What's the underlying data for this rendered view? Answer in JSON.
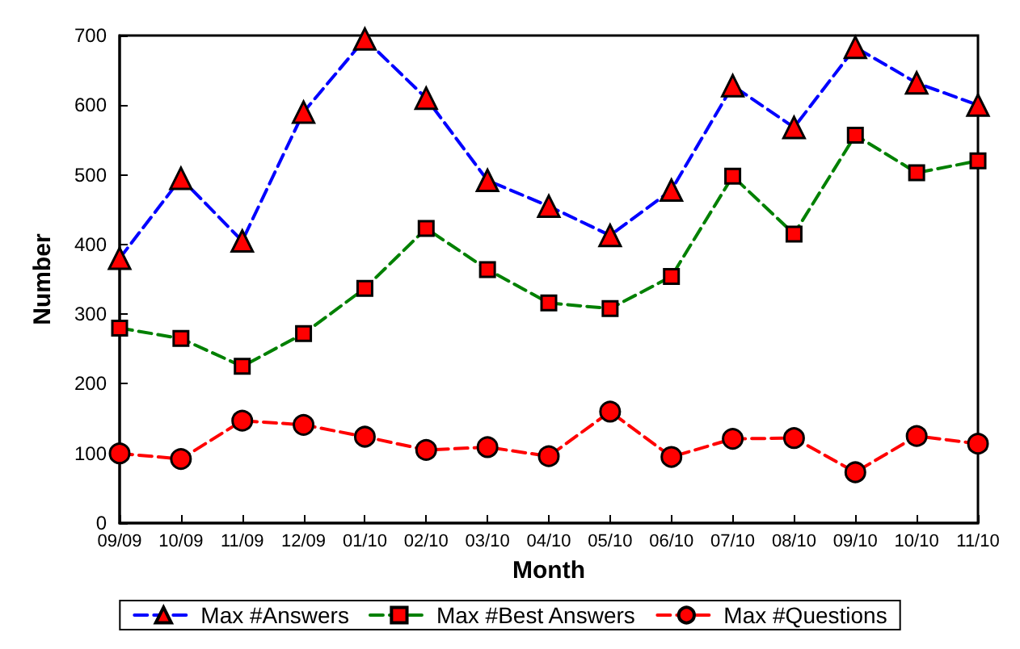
{
  "chart_data": {
    "type": "line",
    "xlabel": "Month",
    "ylabel": "Number",
    "categories": [
      "09/09",
      "10/09",
      "11/09",
      "12/09",
      "01/10",
      "02/10",
      "03/10",
      "04/10",
      "05/10",
      "06/10",
      "07/10",
      "08/10",
      "09/10",
      "10/10",
      "11/10"
    ],
    "series": [
      {
        "name": "Max #Answers",
        "color": "#0000ff",
        "marker": "triangle",
        "values": [
          380,
          495,
          405,
          590,
          695,
          610,
          492,
          455,
          413,
          478,
          628,
          568,
          683,
          632,
          600
        ]
      },
      {
        "name": "Max #Best Answers",
        "color": "#008000",
        "marker": "square",
        "values": [
          280,
          265,
          225,
          272,
          337,
          423,
          364,
          316,
          308,
          354,
          498,
          415,
          557,
          503,
          520
        ]
      },
      {
        "name": "Max #Questions",
        "color": "#ff0000",
        "marker": "circle",
        "values": [
          100,
          92,
          147,
          141,
          124,
          105,
          109,
          96,
          160,
          95,
          121,
          122,
          73,
          125,
          114
        ]
      }
    ],
    "line_style": "dashed",
    "ylim": [
      0,
      700
    ],
    "yticks": [
      0,
      100,
      200,
      300,
      400,
      500,
      600,
      700
    ],
    "grid": false,
    "legend": "bottom"
  }
}
